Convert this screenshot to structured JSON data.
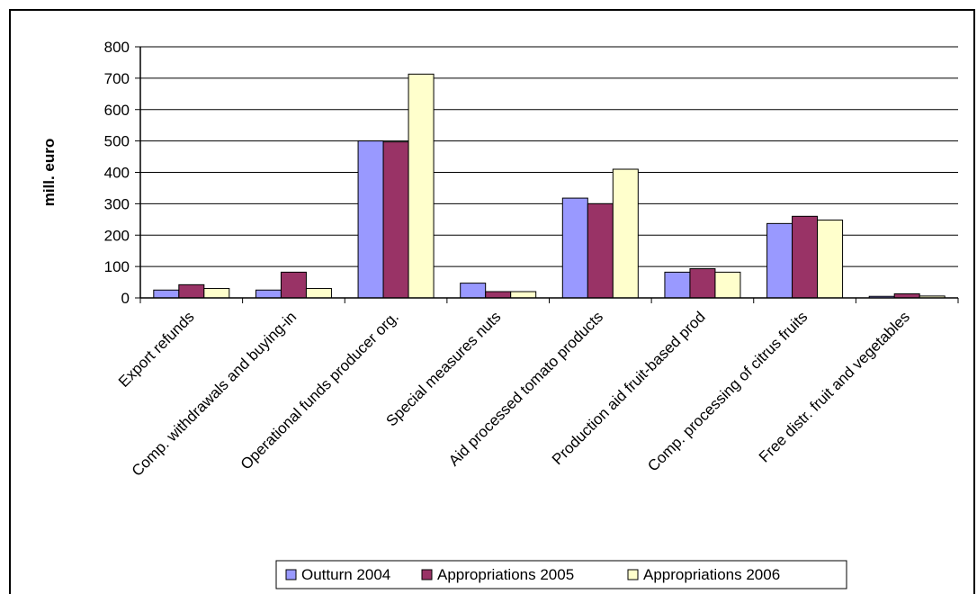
{
  "chart_data": {
    "type": "bar",
    "ylabel": "mill. euro",
    "xlabel": "",
    "ylim": [
      0,
      800
    ],
    "yticks": [
      0,
      100,
      200,
      300,
      400,
      500,
      600,
      700,
      800
    ],
    "grid": true,
    "legend_position": "bottom",
    "categories": [
      "Export refunds",
      "Comp. withdrawals and buying-in",
      "Operational funds producer org.",
      "Special measures nuts",
      "Aid processed tomato products",
      "Production aid fruit-based prod",
      "Comp. processing of citrus fruits",
      "Free distr. fruit and vegetables"
    ],
    "series": [
      {
        "name": "Outturn 2004",
        "color": "#9999ff",
        "values": [
          25,
          25,
          500,
          47,
          318,
          82,
          237,
          5
        ]
      },
      {
        "name": "Appropriations 2005",
        "color": "#993366",
        "values": [
          42,
          82,
          497,
          20,
          300,
          93,
          260,
          13
        ]
      },
      {
        "name": "Appropriations 2006",
        "color": "#ffffcc",
        "values": [
          30,
          30,
          713,
          20,
          410,
          82,
          248,
          6
        ]
      }
    ]
  }
}
